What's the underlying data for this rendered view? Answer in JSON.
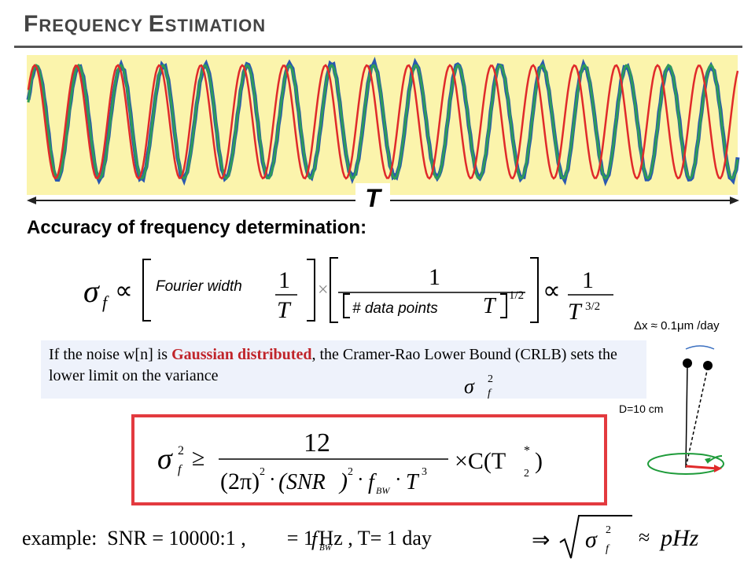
{
  "title": {
    "first_cap": "F",
    "first_rest": "REQUENCY",
    "second_cap": "E",
    "second_rest": "STIMATION"
  },
  "colors": {
    "panel": "#fbf4ac",
    "blue_trace": "#2a58b0",
    "green_trace": "#2e9b58",
    "red_trace": "#e02a2a",
    "emphasis": "#c0242a"
  },
  "waveform": {
    "t_label": "T"
  },
  "accuracy_heading": "Accuracy of frequency determination:",
  "formula1": {
    "sigma": "σ",
    "sub_f": "f",
    "proportional": "∝",
    "one": "1",
    "T": "T",
    "times": "×",
    "half": "1/2",
    "three_half": "3/2",
    "fourier_width": "Fourier width",
    "data_points": "# data points"
  },
  "crlb": {
    "text_before": "If the noise w[n] is ",
    "highlight": "Gaussian distributed",
    "text_after": ", the Cramer-Rao Lower Bound (CRLB) sets the lower limit on the variance"
  },
  "formula2": {
    "numerator": "12",
    "geq": "≥",
    "two_pi": "(2π)",
    "sq": "2",
    "snr": "SNR",
    "dot": "·",
    "fbw": "f",
    "bw": "BW",
    "T": "T",
    "cube": "3",
    "times_c": "×C(T",
    "two": "2",
    "star": "*",
    "close": ")"
  },
  "example": {
    "label": "example:",
    "snr": "SNR = 10000:1 ,",
    "fbw_value": "= 1 Hz ,",
    "T_value": "T= 1 day",
    "implies": "⇒",
    "approx": "≈",
    "unit": "pHz"
  },
  "side_diagram": {
    "delta_x": "Δx ≈ 0.1μm /day",
    "distance": "D=10 cm"
  }
}
